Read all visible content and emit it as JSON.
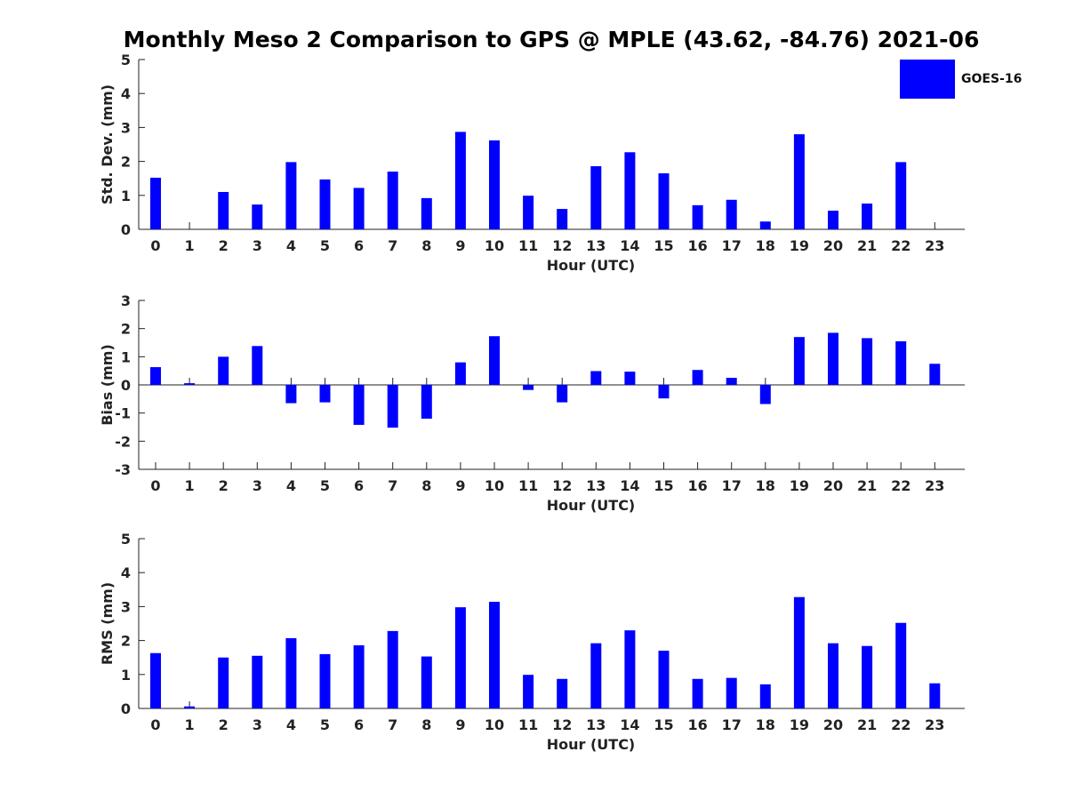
{
  "title": "Monthly Meso 2 Comparison to GPS @ MPLE (43.62, -84.76) 2021-06",
  "legend": {
    "label": "GOES-16",
    "color": "#0000ff"
  },
  "chart_data": [
    {
      "type": "bar",
      "title": "Monthly Meso 2 Comparison to GPS @ MPLE (43.62, -84.76) 2021-06",
      "xlabel": "Hour (UTC)",
      "ylabel": "Std. Dev. (mm)",
      "ylim": [
        0,
        5
      ],
      "yticks": [
        0,
        1,
        2,
        3,
        4,
        5
      ],
      "categories": [
        "0",
        "1",
        "2",
        "3",
        "4",
        "5",
        "6",
        "7",
        "8",
        "9",
        "10",
        "11",
        "12",
        "13",
        "14",
        "15",
        "16",
        "17",
        "18",
        "19",
        "20",
        "21",
        "22",
        "23"
      ],
      "series": [
        {
          "name": "GOES-16",
          "color": "#0000ff",
          "values": [
            1.52,
            0,
            1.1,
            0.73,
            1.98,
            1.47,
            1.22,
            1.7,
            0.92,
            2.87,
            2.62,
            0.99,
            0.6,
            1.86,
            2.27,
            1.65,
            0.71,
            0.87,
            0.23,
            2.8,
            0.55,
            0.76,
            1.98,
            0
          ]
        }
      ],
      "legend": "top-right",
      "grid": false
    },
    {
      "type": "bar",
      "xlabel": "Hour (UTC)",
      "ylabel": "Bias (mm)",
      "ylim": [
        -3,
        3
      ],
      "yticks": [
        -3,
        -2,
        -1,
        0,
        1,
        2,
        3
      ],
      "categories": [
        "0",
        "1",
        "2",
        "3",
        "4",
        "5",
        "6",
        "7",
        "8",
        "9",
        "10",
        "11",
        "12",
        "13",
        "14",
        "15",
        "16",
        "17",
        "18",
        "19",
        "20",
        "21",
        "22",
        "23"
      ],
      "series": [
        {
          "name": "GOES-16",
          "color": "#0000ff",
          "values": [
            0.63,
            0.06,
            1.0,
            1.38,
            -0.65,
            -0.62,
            -1.42,
            -1.52,
            -1.2,
            0.8,
            1.73,
            -0.18,
            -0.62,
            0.49,
            0.47,
            -0.48,
            0.53,
            0.25,
            -0.68,
            1.7,
            1.85,
            1.66,
            1.55,
            0.75
          ]
        }
      ],
      "grid": false
    },
    {
      "type": "bar",
      "xlabel": "Hour (UTC)",
      "ylabel": "RMS (mm)",
      "ylim": [
        0,
        5
      ],
      "yticks": [
        0,
        1,
        2,
        3,
        4,
        5
      ],
      "categories": [
        "0",
        "1",
        "2",
        "3",
        "4",
        "5",
        "6",
        "7",
        "8",
        "9",
        "10",
        "11",
        "12",
        "13",
        "14",
        "15",
        "16",
        "17",
        "18",
        "19",
        "20",
        "21",
        "22",
        "23"
      ],
      "series": [
        {
          "name": "GOES-16",
          "color": "#0000ff",
          "values": [
            1.63,
            0.06,
            1.5,
            1.55,
            2.07,
            1.6,
            1.86,
            2.28,
            1.53,
            2.98,
            3.14,
            0.99,
            0.87,
            1.92,
            2.3,
            1.7,
            0.87,
            0.9,
            0.71,
            3.28,
            1.92,
            1.84,
            2.52,
            0.74
          ]
        }
      ],
      "grid": false
    }
  ]
}
